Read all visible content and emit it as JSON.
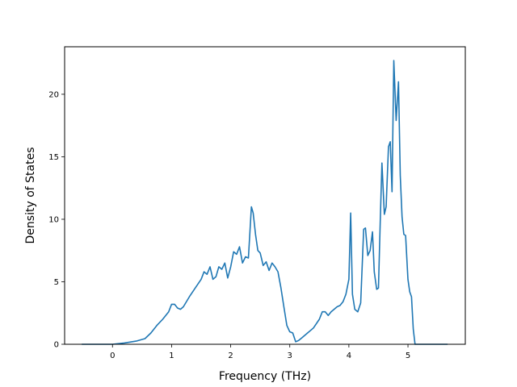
{
  "chart_data": {
    "type": "line",
    "title": "",
    "xlabel": "Frequency (THz)",
    "ylabel": "Density of States",
    "xlim": [
      -0.81,
      5.97
    ],
    "ylim": [
      0,
      23.8
    ],
    "xticks": [
      0,
      1,
      2,
      3,
      4,
      5
    ],
    "yticks": [
      0,
      5,
      10,
      15,
      20
    ],
    "xtick_labels": [
      "0",
      "1",
      "2",
      "3",
      "4",
      "5"
    ],
    "ytick_labels": [
      "0",
      "5",
      "10",
      "15",
      "20"
    ],
    "grid": false,
    "legend": "none",
    "line_color": "#1f77b4",
    "series": [
      {
        "x": [
          -0.52,
          -0.3,
          0.0,
          0.2,
          0.4,
          0.55,
          0.65,
          0.75,
          0.85,
          0.95,
          1.0,
          1.05,
          1.1,
          1.15,
          1.2,
          1.3,
          1.4,
          1.5,
          1.55,
          1.6,
          1.65,
          1.7,
          1.75,
          1.8,
          1.85,
          1.9,
          1.95,
          2.0,
          2.05,
          2.1,
          2.15,
          2.2,
          2.25,
          2.3,
          2.35,
          2.38,
          2.42,
          2.46,
          2.5,
          2.55,
          2.6,
          2.65,
          2.7,
          2.75,
          2.8,
          2.85,
          2.9,
          2.95,
          3.0,
          3.05,
          3.1,
          3.15,
          3.2,
          3.3,
          3.4,
          3.5,
          3.55,
          3.6,
          3.65,
          3.7,
          3.75,
          3.8,
          3.85,
          3.9,
          3.95,
          4.0,
          4.03,
          4.06,
          4.1,
          4.15,
          4.2,
          4.25,
          4.28,
          4.32,
          4.36,
          4.4,
          4.43,
          4.47,
          4.5,
          4.53,
          4.56,
          4.6,
          4.63,
          4.67,
          4.7,
          4.73,
          4.76,
          4.8,
          4.84,
          4.87,
          4.9,
          4.93,
          4.96,
          5.0,
          5.03,
          5.06,
          5.09,
          5.12,
          5.15,
          5.17,
          5.3,
          5.5,
          5.67
        ],
        "y": [
          0.0,
          0.0,
          0.0,
          0.1,
          0.25,
          0.45,
          0.9,
          1.5,
          2.0,
          2.6,
          3.2,
          3.2,
          2.9,
          2.8,
          3.0,
          3.8,
          4.5,
          5.2,
          5.8,
          5.6,
          6.2,
          5.2,
          5.4,
          6.2,
          6.0,
          6.5,
          5.3,
          6.2,
          7.4,
          7.2,
          7.8,
          6.5,
          7.0,
          6.9,
          11.0,
          10.5,
          8.8,
          7.5,
          7.3,
          6.3,
          6.6,
          5.9,
          6.5,
          6.2,
          5.8,
          4.5,
          3.0,
          1.5,
          1.0,
          0.9,
          0.2,
          0.3,
          0.5,
          0.9,
          1.3,
          2.0,
          2.6,
          2.6,
          2.3,
          2.6,
          2.8,
          3.0,
          3.1,
          3.4,
          4.0,
          5.2,
          10.5,
          4.0,
          2.8,
          2.6,
          3.3,
          9.2,
          9.3,
          7.1,
          7.5,
          9.0,
          5.8,
          4.4,
          4.5,
          9.8,
          14.5,
          10.4,
          11.0,
          15.8,
          16.2,
          12.2,
          22.7,
          17.9,
          21.0,
          13.5,
          10.2,
          8.8,
          8.7,
          5.2,
          4.2,
          3.8,
          1.2,
          0.0,
          0.0,
          0.0,
          0.0,
          0.0,
          0.0
        ]
      }
    ]
  }
}
